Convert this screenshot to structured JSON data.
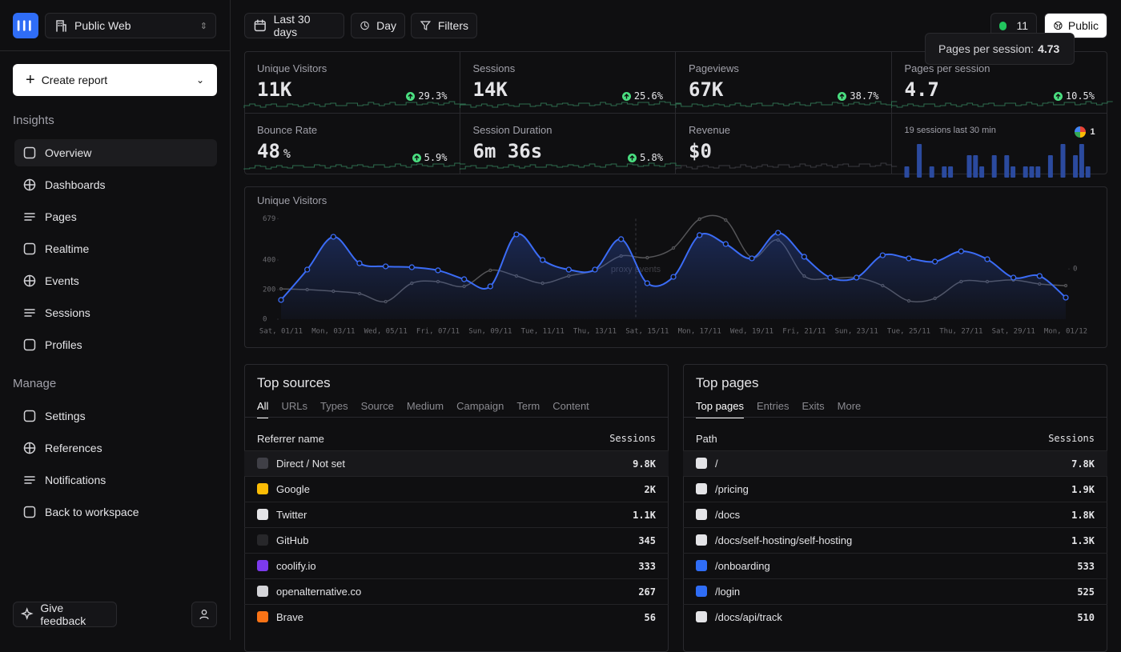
{
  "sidebar": {
    "project": "Public Web",
    "create_report": "Create report",
    "sections": [
      {
        "title": "Insights",
        "items": [
          "Overview",
          "Dashboards",
          "Pages",
          "Realtime",
          "Events",
          "Sessions",
          "Profiles"
        ]
      },
      {
        "title": "Manage",
        "items": [
          "Settings",
          "References",
          "Notifications",
          "Back to workspace"
        ]
      }
    ],
    "feedback": "Give feedback"
  },
  "toolbar": {
    "range": "Last 30 days",
    "interval": "Day",
    "filters": "Filters",
    "live_visitors": "11",
    "visibility": "Public"
  },
  "tooltip": {
    "label": "Pages per session:",
    "value": "4.73"
  },
  "metrics": [
    {
      "label": "Unique Visitors",
      "value": "11K",
      "change": "29.3%"
    },
    {
      "label": "Sessions",
      "value": "14K",
      "change": "25.6%"
    },
    {
      "label": "Pageviews",
      "value": "67K",
      "change": "38.7%"
    },
    {
      "label": "Pages per session",
      "value": "4.7",
      "change": "10.5%"
    },
    {
      "label": "Bounce Rate",
      "value": "48",
      "unit": "%",
      "change": "5.9%"
    },
    {
      "label": "Session Duration",
      "value": "6m 36s",
      "change": "5.8%"
    },
    {
      "label": "Revenue",
      "value": "$0"
    }
  ],
  "realtime": {
    "label": "19 sessions last 30 min",
    "referrer_count": "1",
    "ylim": [
      0,
      3
    ],
    "values": [
      1,
      0,
      3,
      0,
      1,
      0,
      1,
      1,
      0,
      0,
      2,
      2,
      1,
      0,
      2,
      0,
      2,
      1,
      0,
      1,
      1,
      1,
      0,
      2,
      0,
      3,
      0,
      2,
      3,
      1
    ]
  },
  "chart_data": {
    "type": "line",
    "title": "Unique Visitors",
    "categories": [
      "Sat, 01/11",
      null,
      "Mon, 03/11",
      null,
      "Wed, 05/11",
      null,
      "Fri, 07/11",
      null,
      "Sun, 09/11",
      null,
      "Tue, 11/11",
      null,
      "Thu, 13/11",
      null,
      "Sat, 15/11",
      null,
      "Mon, 17/11",
      null,
      "Wed, 19/11",
      null,
      "Fri, 21/11",
      null,
      "Sun, 23/11",
      null,
      "Tue, 25/11",
      null,
      "Thu, 27/11",
      null,
      "Sat, 29/11",
      null,
      "Mon, 01/12"
    ],
    "series": [
      {
        "color": "#555558",
        "values": [
          205,
          200,
          189,
          173,
          119,
          243,
          254,
          222,
          330,
          292,
          243,
          292,
          330,
          427,
          416,
          481,
          676,
          670,
          416,
          535,
          292,
          276,
          281,
          227,
          124,
          141,
          254,
          254,
          265,
          238,
          227
        ]
      },
      {
        "color": "#3b6cf6",
        "values": [
          130,
          335,
          557,
          378,
          357,
          351,
          330,
          270,
          222,
          573,
          400,
          335,
          335,
          541,
          243,
          286,
          568,
          508,
          411,
          584,
          422,
          281,
          281,
          432,
          411,
          389,
          459,
          405,
          281,
          292,
          146
        ]
      }
    ],
    "ylim": [
      0,
      679
    ],
    "yticks": [
      0,
      200,
      400,
      679
    ],
    "y2lim": [
      -1,
      1
    ],
    "y2ticks": [
      0
    ],
    "annotation": "proxy events"
  },
  "top_sources": {
    "title": "Top sources",
    "tabs": [
      "All",
      "URLs",
      "Types",
      "Source",
      "Medium",
      "Campaign",
      "Term",
      "Content"
    ],
    "columns": [
      "Referrer name",
      "Sessions"
    ],
    "rows": [
      [
        "Direct / Not set",
        "9.8K"
      ],
      [
        "Google",
        "2K"
      ],
      [
        "Twitter",
        "1.1K"
      ],
      [
        "GitHub",
        "345"
      ],
      [
        "coolify.io",
        "333"
      ],
      [
        "openalternative.co",
        "267"
      ],
      [
        "Brave",
        "56"
      ]
    ]
  },
  "top_pages": {
    "title": "Top pages",
    "tabs": [
      "Top pages",
      "Entries",
      "Exits",
      "More"
    ],
    "columns": [
      "Path",
      "Sessions"
    ],
    "rows": [
      [
        "/",
        "7.8K"
      ],
      [
        "/pricing",
        "1.9K"
      ],
      [
        "/docs",
        "1.8K"
      ],
      [
        "/docs/self-hosting/self-hosting",
        "1.3K"
      ],
      [
        "/onboarding",
        "533"
      ],
      [
        "/login",
        "525"
      ],
      [
        "/docs/api/track",
        "510"
      ]
    ]
  }
}
